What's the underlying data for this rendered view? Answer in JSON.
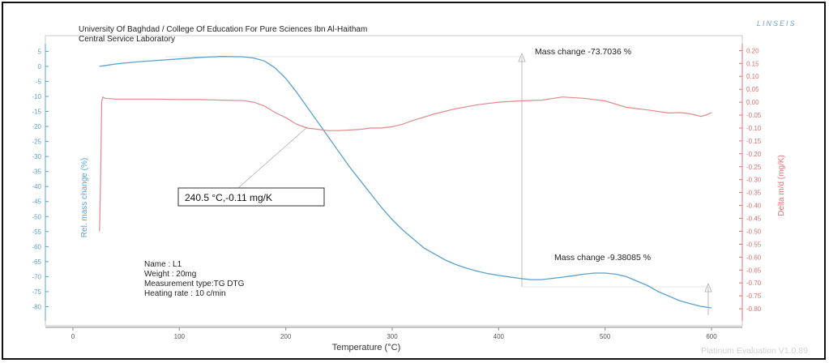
{
  "header": {
    "line1": "University Of Baghdad / College Of Education For Pure Sciences Ibn Al-Haitham",
    "line2": "Central Service Laboratory",
    "logo_text": "LINSEIS"
  },
  "info": {
    "name": "Name : L1",
    "weight": "Weight :  20mg",
    "measurement": "Measurement type:TG  DTG",
    "heating": "Heating rate : 10 c/min"
  },
  "footer": {
    "watermark": "Platinum Evaluation V1.0.89"
  },
  "annotations": {
    "mass_change_1": "Mass change  -73.7036 %",
    "mass_change_2": "Mass change  -9.38085 %",
    "peak_box": "240.5 °C,-0.11 mg/K"
  },
  "colors": {
    "tg": "#5aa0d0",
    "dtg": "#e08a8a",
    "axis_left": "#5aa0d0",
    "axis_right": "#e07070"
  },
  "chart_data": {
    "type": "line",
    "xlabel": "Temperature (°C)",
    "ylabel": "Rel. mass change (%)",
    "y2label": "Delta m/d (mg/K)",
    "xlim": [
      0,
      600
    ],
    "ylim": [
      -85,
      7
    ],
    "y2lim": [
      -0.85,
      0.22
    ],
    "x_ticks": [
      "0",
      "100",
      "200",
      "300",
      "400",
      "500",
      "600"
    ],
    "y_ticks": [
      "5",
      "0",
      "-5",
      "-10",
      "-15",
      "-20",
      "-25",
      "-30",
      "-35",
      "-40",
      "-45",
      "-50",
      "-55",
      "-60",
      "-65",
      "-70",
      "-75",
      "-80"
    ],
    "y2_ticks": [
      "0.20",
      "0.15",
      "0.10",
      "0.05",
      "0.00",
      "-0.05",
      "-0.10",
      "-0.15",
      "-0.20",
      "-0.25",
      "-0.30",
      "-0.35",
      "-0.40",
      "-0.45",
      "-0.50",
      "-0.55",
      "-0.60",
      "-0.65",
      "-0.70",
      "-0.75",
      "-0.80"
    ],
    "series": [
      {
        "axis": "left",
        "x": [
          25,
          40,
          60,
          80,
          100,
          120,
          140,
          160,
          170,
          180,
          190,
          200,
          210,
          220,
          230,
          240,
          250,
          260,
          270,
          280,
          290,
          300,
          310,
          320,
          330,
          340,
          350,
          360,
          370,
          380,
          390,
          400,
          410,
          420,
          430,
          440,
          450,
          460,
          470,
          480,
          490,
          500,
          510,
          520,
          530,
          540,
          550,
          560,
          570,
          580,
          590,
          600
        ],
        "y": [
          0,
          0.8,
          1.5,
          2,
          2.5,
          3,
          3.3,
          3.2,
          2.8,
          1.8,
          -0.5,
          -4,
          -8.5,
          -13.5,
          -18.5,
          -23.5,
          -28.5,
          -33.5,
          -38,
          -42.5,
          -47,
          -51,
          -54.5,
          -57.5,
          -60.5,
          -62.5,
          -64.5,
          -66,
          -67.2,
          -68.2,
          -69,
          -69.6,
          -70.1,
          -70.6,
          -71,
          -71,
          -70.6,
          -70.2,
          -69.7,
          -69.2,
          -68.8,
          -68.8,
          -69.2,
          -70,
          -71.5,
          -73,
          -75,
          -76.5,
          -78,
          -79,
          -79.9,
          -80.4
        ]
      },
      {
        "axis": "right",
        "x": [
          25,
          26,
          27,
          28,
          30,
          40,
          60,
          80,
          100,
          120,
          140,
          160,
          170,
          180,
          190,
          200,
          210,
          220,
          230,
          240,
          250,
          260,
          270,
          280,
          290,
          300,
          310,
          320,
          340,
          360,
          380,
          400,
          420,
          440,
          460,
          480,
          500,
          520,
          540,
          560,
          570,
          580,
          590,
          595,
          600
        ],
        "y": [
          -0.5,
          -0.3,
          0.0,
          0.02,
          0.015,
          0.012,
          0.012,
          0.012,
          0.01,
          0.01,
          0.008,
          0.006,
          0.0,
          -0.015,
          -0.04,
          -0.06,
          -0.085,
          -0.1,
          -0.105,
          -0.11,
          -0.11,
          -0.108,
          -0.105,
          -0.1,
          -0.1,
          -0.095,
          -0.085,
          -0.07,
          -0.045,
          -0.025,
          -0.01,
          0.0,
          0.005,
          0.008,
          0.02,
          0.015,
          0.005,
          -0.02,
          -0.03,
          -0.042,
          -0.04,
          -0.045,
          -0.055,
          -0.05,
          -0.04
        ]
      }
    ]
  }
}
